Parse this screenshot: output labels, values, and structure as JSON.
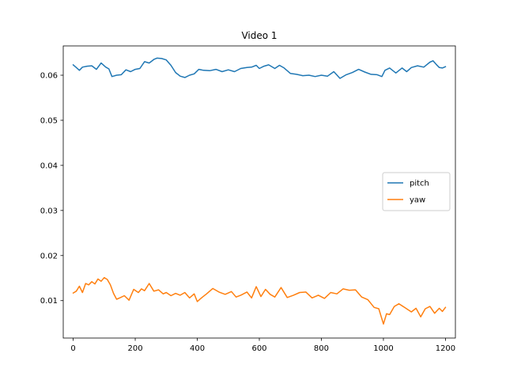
{
  "chart_data": {
    "type": "line",
    "title": "Video 1",
    "xlabel": "",
    "ylabel": "",
    "xlim": [
      -32,
      1232
    ],
    "ylim": [
      0.0017,
      0.0665
    ],
    "xticks": [
      0,
      200,
      400,
      600,
      800,
      1000,
      1200
    ],
    "yticks": [
      0.01,
      0.02,
      0.03,
      0.04,
      0.05,
      0.06
    ],
    "xtick_labels": [
      "0",
      "200",
      "400",
      "600",
      "800",
      "1000",
      "1200"
    ],
    "ytick_labels": [
      "0.01",
      "0.02",
      "0.03",
      "0.04",
      "0.05",
      "0.06"
    ],
    "grid": false,
    "legend_position": "center-right",
    "series": [
      {
        "name": "pitch",
        "color": "#1f77b4",
        "x": [
          0,
          10,
          20,
          30,
          45,
          60,
          75,
          90,
          105,
          115,
          125,
          140,
          155,
          170,
          185,
          200,
          215,
          230,
          245,
          260,
          270,
          285,
          300,
          315,
          330,
          345,
          360,
          375,
          390,
          405,
          420,
          440,
          460,
          480,
          500,
          520,
          540,
          560,
          575,
          590,
          600,
          615,
          630,
          650,
          665,
          680,
          700,
          720,
          740,
          760,
          780,
          800,
          820,
          840,
          860,
          880,
          900,
          920,
          940,
          960,
          980,
          995,
          1005,
          1020,
          1040,
          1060,
          1075,
          1090,
          1110,
          1130,
          1150,
          1160,
          1170,
          1180,
          1190,
          1200
        ],
        "y": [
          0.0623,
          0.0617,
          0.0611,
          0.0618,
          0.062,
          0.0621,
          0.0613,
          0.0627,
          0.0618,
          0.0614,
          0.0597,
          0.06,
          0.0601,
          0.0612,
          0.0608,
          0.0613,
          0.0615,
          0.063,
          0.0627,
          0.0635,
          0.0638,
          0.0637,
          0.0634,
          0.0622,
          0.0606,
          0.0598,
          0.0595,
          0.06,
          0.0603,
          0.0613,
          0.0611,
          0.061,
          0.0613,
          0.0608,
          0.0612,
          0.0608,
          0.0615,
          0.0617,
          0.0618,
          0.0622,
          0.0615,
          0.062,
          0.0623,
          0.0615,
          0.0622,
          0.0616,
          0.0604,
          0.0602,
          0.0599,
          0.06,
          0.0597,
          0.06,
          0.0598,
          0.0608,
          0.0593,
          0.0601,
          0.0606,
          0.0613,
          0.0607,
          0.0602,
          0.0601,
          0.0597,
          0.0611,
          0.0616,
          0.0605,
          0.0616,
          0.0608,
          0.0617,
          0.0621,
          0.0618,
          0.0629,
          0.0632,
          0.0624,
          0.0617,
          0.0616,
          0.0619
        ]
      },
      {
        "name": "yaw",
        "color": "#ff7f0e",
        "x": [
          0,
          10,
          20,
          30,
          40,
          50,
          60,
          70,
          80,
          90,
          100,
          110,
          120,
          130,
          140,
          150,
          165,
          180,
          195,
          210,
          220,
          230,
          245,
          260,
          275,
          290,
          300,
          315,
          330,
          345,
          360,
          375,
          390,
          400,
          415,
          430,
          450,
          470,
          490,
          510,
          525,
          540,
          560,
          575,
          590,
          605,
          620,
          635,
          650,
          670,
          690,
          710,
          730,
          750,
          770,
          790,
          810,
          830,
          850,
          870,
          890,
          910,
          930,
          950,
          970,
          985,
          1000,
          1010,
          1020,
          1035,
          1050,
          1070,
          1090,
          1105,
          1120,
          1135,
          1150,
          1165,
          1180,
          1190,
          1200
        ],
        "y": [
          0.0117,
          0.0121,
          0.0132,
          0.0118,
          0.0138,
          0.0135,
          0.0142,
          0.0137,
          0.0148,
          0.0143,
          0.0151,
          0.0147,
          0.0135,
          0.0116,
          0.0103,
          0.0106,
          0.0111,
          0.0101,
          0.0125,
          0.0118,
          0.0126,
          0.0122,
          0.0138,
          0.0121,
          0.0124,
          0.0115,
          0.0118,
          0.0111,
          0.0116,
          0.0112,
          0.0118,
          0.0106,
          0.0115,
          0.0098,
          0.0107,
          0.0115,
          0.0127,
          0.0119,
          0.0114,
          0.012,
          0.0108,
          0.0112,
          0.0119,
          0.0106,
          0.0131,
          0.0109,
          0.0125,
          0.0114,
          0.0108,
          0.0129,
          0.0107,
          0.0112,
          0.0118,
          0.0119,
          0.0106,
          0.0112,
          0.0105,
          0.0118,
          0.0115,
          0.0126,
          0.0123,
          0.0124,
          0.0108,
          0.0102,
          0.0085,
          0.0082,
          0.0048,
          0.0071,
          0.0069,
          0.0087,
          0.0093,
          0.0084,
          0.0075,
          0.0083,
          0.0064,
          0.0082,
          0.0087,
          0.0072,
          0.0083,
          0.0076,
          0.0085
        ]
      }
    ]
  }
}
